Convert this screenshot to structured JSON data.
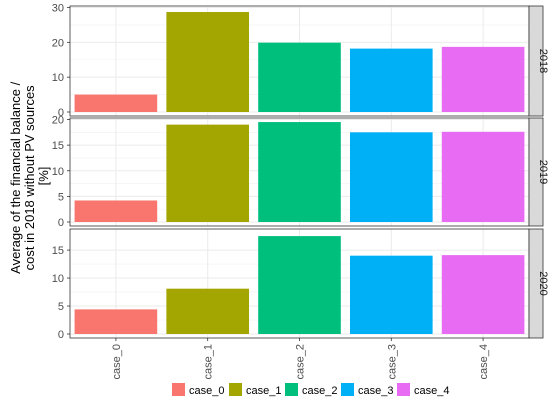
{
  "chart_data": {
    "type": "bar",
    "ylabel_lines": [
      "Average of the financial balance /",
      "cost in 2018 without PV sources",
      "[%]"
    ],
    "categories": [
      "case_0",
      "case_1",
      "case_2",
      "case_3",
      "case_4"
    ],
    "colors": [
      "#F8766D",
      "#A3A500",
      "#00BF7D",
      "#00B0F6",
      "#E76BF3"
    ],
    "panels": [
      {
        "label": "2018",
        "ylim": [
          0,
          30
        ],
        "ticks": [
          0,
          10,
          20,
          30
        ],
        "values": [
          5.0,
          28.7,
          19.9,
          18.2,
          18.7
        ]
      },
      {
        "label": "2019",
        "ylim": [
          0,
          20
        ],
        "ticks": [
          0,
          5,
          10,
          15,
          20
        ],
        "values": [
          4.2,
          19.0,
          19.5,
          17.5,
          17.6
        ]
      },
      {
        "label": "2020",
        "ylim": [
          0,
          18.5
        ],
        "ticks": [
          0,
          5,
          10,
          15
        ],
        "values": [
          4.4,
          8.1,
          17.5,
          14.0,
          14.1
        ]
      }
    ],
    "legend": {
      "position": "bottom",
      "entries": [
        "case_0",
        "case_1",
        "case_2",
        "case_3",
        "case_4"
      ]
    },
    "grid": true,
    "facet": "rows by year"
  }
}
